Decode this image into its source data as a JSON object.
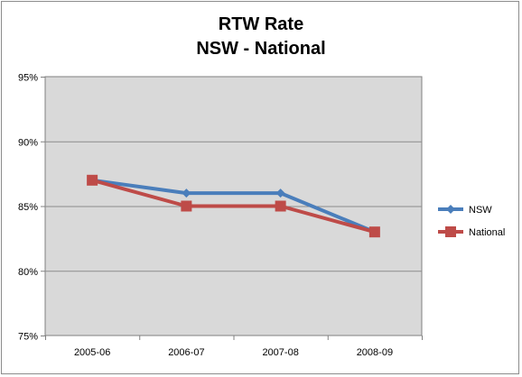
{
  "chart_data": {
    "type": "line",
    "title": "RTW Rate",
    "subtitle": "NSW - National",
    "categories": [
      "2005-06",
      "2006-07",
      "2007-08",
      "2008-09"
    ],
    "series": [
      {
        "name": "NSW",
        "values": [
          87,
          86,
          86,
          83
        ],
        "color": "#4a7ebb",
        "marker": "diamond"
      },
      {
        "name": "National",
        "values": [
          87,
          85,
          85,
          83
        ],
        "color": "#be4b48",
        "marker": "square"
      }
    ],
    "ylim": [
      75,
      95
    ],
    "yticks": [
      "75%",
      "80%",
      "85%",
      "90%",
      "95%"
    ],
    "ytick_values": [
      75,
      80,
      85,
      90,
      95
    ],
    "grid": true,
    "legend_position": "right",
    "plot_background": "#d9d9d9"
  }
}
